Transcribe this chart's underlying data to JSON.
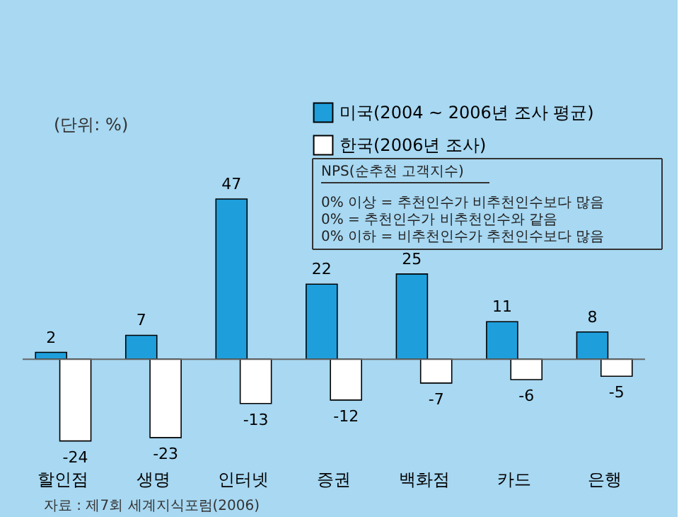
{
  "chart_data": {
    "type": "bar",
    "ylabel": "(단위: %)",
    "categories": [
      "할인점",
      "생명",
      "인터넷",
      "증권",
      "백화점",
      "카드",
      "은행"
    ],
    "series": [
      {
        "name": "미국(2004 ~ 2006년 조사 평균)",
        "color": "#1e9fdc",
        "values": [
          2,
          7,
          47,
          22,
          25,
          11,
          8
        ]
      },
      {
        "name": "한국(2006년 조사)",
        "color": "#ffffff",
        "values": [
          -24,
          -23,
          -13,
          -12,
          -7,
          -6,
          -5
        ]
      }
    ],
    "data_labels": true,
    "legend": "top right",
    "grid": false,
    "annotations": [
      "NPS(순추천 고객지수)",
      "0% 이상 = 추천인수가 비추천인수보다 많음",
      "0% = 추천인수가 비추천인수와 같음",
      "0% 이하 = 비추천인수가 추천인수보다 많음",
      "자료 : 제7회 세계지식포럼(2006)"
    ]
  }
}
